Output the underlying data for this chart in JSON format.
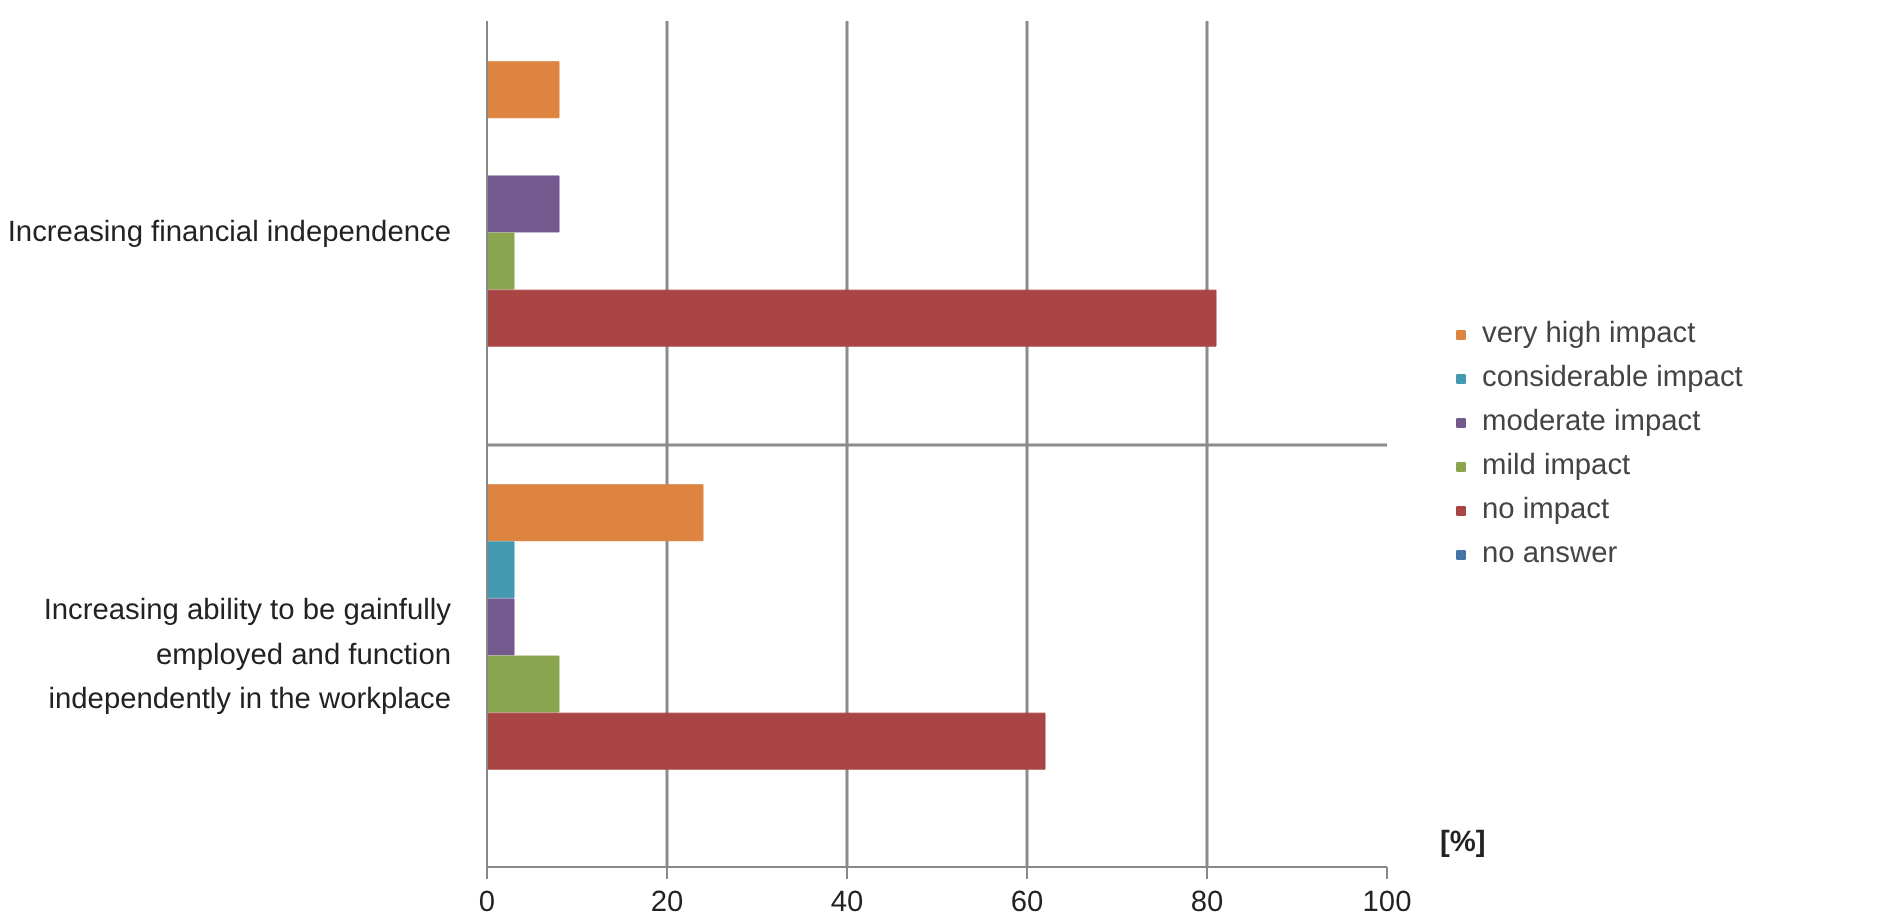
{
  "chart_data": {
    "type": "bar",
    "orientation": "horizontal",
    "xlabel": "[%]",
    "categories": [
      "Increasing financial independence",
      "Increasing ability to be gainfully employed and function independently in the workplace"
    ],
    "series": [
      {
        "name": "very high impact",
        "color": "#dd8540",
        "values": [
          8,
          24
        ]
      },
      {
        "name": "considerable impact",
        "color": "#4299b0",
        "values": [
          0,
          3
        ]
      },
      {
        "name": "moderate impact",
        "color": "#74598f",
        "values": [
          8,
          3
        ]
      },
      {
        "name": "mild impact",
        "color": "#8aa54f",
        "values": [
          3,
          8
        ]
      },
      {
        "name": "no impact",
        "color": "#a94544",
        "values": [
          81,
          62
        ]
      },
      {
        "name": "no answer",
        "color": "#4572a7",
        "values": [
          0,
          0
        ]
      }
    ],
    "xlim": [
      0,
      100
    ],
    "xticks": [
      0,
      20,
      40,
      60,
      80,
      100
    ],
    "grid": true,
    "legend": "right"
  }
}
